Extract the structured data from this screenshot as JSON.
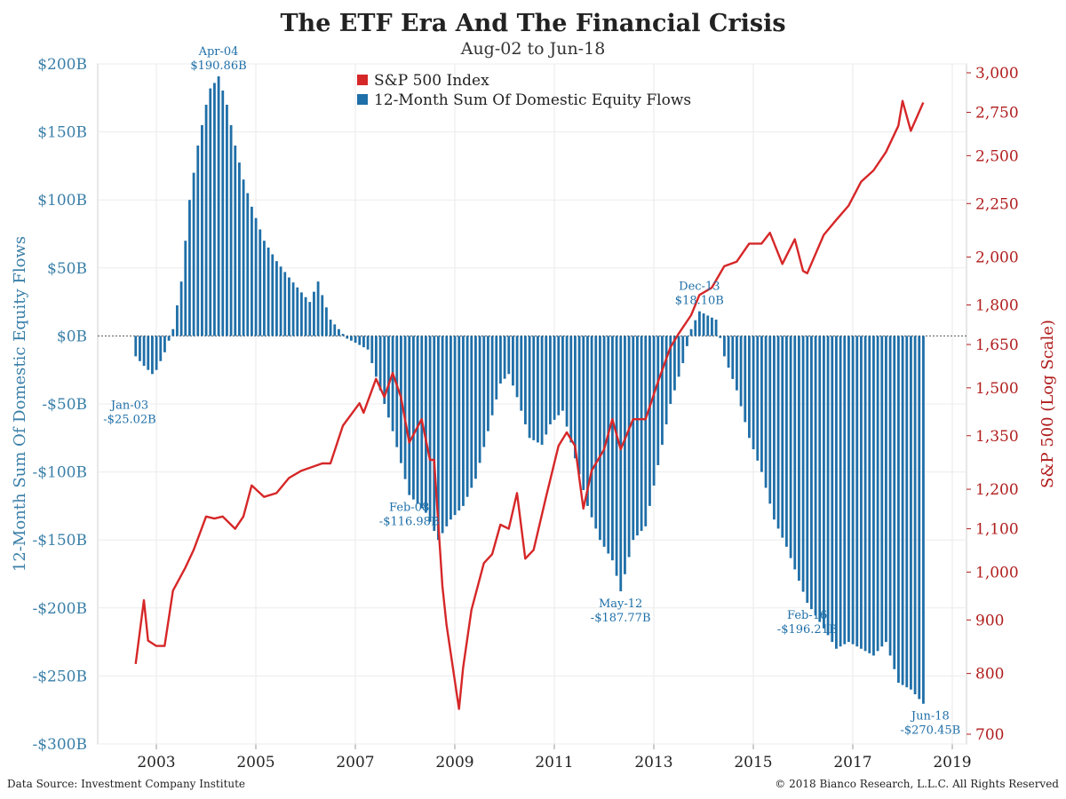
{
  "title": "The ETF Era And The Financial Crisis",
  "subtitle": "Aug-02 to Jun-18",
  "footer": {
    "source": "Data Source: Investment Company Institute",
    "copyright": "© 2018  Bianco Research, L.L.C. All Rights Reserved"
  },
  "colors": {
    "bars": "#1f6fa8",
    "line": "#d62728",
    "left_axis": "#3a7fa8",
    "right_axis": "#b01c1c"
  },
  "chart_data": {
    "type": "bar+line",
    "title": "The ETF Era And The Financial Crisis",
    "subtitle": "Aug-02 to Jun-18",
    "x_range": [
      "Aug-02",
      "Jun-18"
    ],
    "x_ticks": [
      "2003",
      "2005",
      "2007",
      "2009",
      "2011",
      "2013",
      "2015",
      "2017",
      "2019"
    ],
    "left_axis": {
      "label": "12-Month Sum Of Domestic Equity Flows",
      "ylim": [
        -300,
        200
      ],
      "ticks": [
        200,
        150,
        100,
        50,
        0,
        -50,
        -100,
        -150,
        -200,
        -250,
        -300
      ],
      "tick_labels": [
        "$200B",
        "$150B",
        "$100B",
        "$50B",
        "$0B",
        "-$50B",
        "-$100B",
        "-$150B",
        "-$200B",
        "-$250B",
        "-$300B"
      ]
    },
    "right_axis": {
      "label": "S&P 500 (Log Scale)",
      "scale": "log",
      "ylim": [
        680,
        3100
      ],
      "ticks": [
        3000,
        2750,
        2500,
        2250,
        2000,
        1800,
        1650,
        1500,
        1350,
        1200,
        1100,
        1000,
        900,
        800,
        700
      ],
      "tick_labels": [
        "3,000",
        "2,750",
        "2,500",
        "2,250",
        "2,000",
        "1,800",
        "1,650",
        "1,500",
        "1,350",
        "1,200",
        "1,100",
        "1,000",
        "900",
        "800",
        "700"
      ]
    },
    "legend": {
      "placement": "top-center",
      "entries": [
        "S&P 500 Index",
        "12-Month Sum Of Domestic Equity Flows"
      ]
    },
    "grid": true,
    "series": [
      {
        "name": "12-Month Sum Of Domestic Equity Flows",
        "type": "bar",
        "units": "$B",
        "points": [
          [
            "2002-08",
            -15
          ],
          [
            "2002-10",
            -22
          ],
          [
            "2002-12",
            -28
          ],
          [
            "2003-01",
            -25.02
          ],
          [
            "2003-03",
            -12
          ],
          [
            "2003-05",
            5
          ],
          [
            "2003-07",
            40
          ],
          [
            "2003-09",
            100
          ],
          [
            "2003-11",
            140
          ],
          [
            "2004-01",
            170
          ],
          [
            "2004-02",
            182
          ],
          [
            "2004-03",
            186
          ],
          [
            "2004-04",
            190.86
          ],
          [
            "2004-06",
            170
          ],
          [
            "2004-08",
            140
          ],
          [
            "2004-10",
            115
          ],
          [
            "2004-12",
            95
          ],
          [
            "2005-03",
            70
          ],
          [
            "2005-06",
            55
          ],
          [
            "2005-09",
            43
          ],
          [
            "2005-12",
            32
          ],
          [
            "2006-02",
            25
          ],
          [
            "2006-04",
            40
          ],
          [
            "2006-05",
            30
          ],
          [
            "2006-07",
            12
          ],
          [
            "2006-09",
            5
          ],
          [
            "2006-11",
            -2
          ],
          [
            "2007-01",
            -5
          ],
          [
            "2007-04",
            -10
          ],
          [
            "2007-07",
            -40
          ],
          [
            "2007-10",
            -70
          ],
          [
            "2008-02",
            -116.98
          ],
          [
            "2008-06",
            -130
          ],
          [
            "2008-09",
            -150
          ],
          [
            "2008-12",
            -135
          ],
          [
            "2009-03",
            -125
          ],
          [
            "2009-06",
            -105
          ],
          [
            "2009-09",
            -70
          ],
          [
            "2009-12",
            -35
          ],
          [
            "2010-02",
            -28
          ],
          [
            "2010-04",
            -45
          ],
          [
            "2010-07",
            -75
          ],
          [
            "2010-10",
            -80
          ],
          [
            "2010-12",
            -65
          ],
          [
            "2011-03",
            -55
          ],
          [
            "2011-06",
            -90
          ],
          [
            "2011-09",
            -125
          ],
          [
            "2011-12",
            -150
          ],
          [
            "2012-03",
            -165
          ],
          [
            "2012-05",
            -187.77
          ],
          [
            "2012-08",
            -150
          ],
          [
            "2012-11",
            -140
          ],
          [
            "2013-02",
            -95
          ],
          [
            "2013-05",
            -50
          ],
          [
            "2013-08",
            -20
          ],
          [
            "2013-10",
            5
          ],
          [
            "2013-12",
            18.1
          ],
          [
            "2014-02",
            15
          ],
          [
            "2014-04",
            12
          ],
          [
            "2014-06",
            -15
          ],
          [
            "2014-09",
            -40
          ],
          [
            "2014-12",
            -75
          ],
          [
            "2015-03",
            -100
          ],
          [
            "2015-06",
            -135
          ],
          [
            "2015-09",
            -155
          ],
          [
            "2015-12",
            -180
          ],
          [
            "2016-02",
            -196.21
          ],
          [
            "2016-06",
            -215
          ],
          [
            "2016-09",
            -230
          ],
          [
            "2016-12",
            -225
          ],
          [
            "2017-03",
            -230
          ],
          [
            "2017-06",
            -235
          ],
          [
            "2017-09",
            -225
          ],
          [
            "2017-12",
            -255
          ],
          [
            "2018-03",
            -260
          ],
          [
            "2018-06",
            -270.45
          ]
        ]
      },
      {
        "name": "S&P 500 Index",
        "type": "line",
        "axis": "right",
        "points": [
          [
            "2002-08",
            817
          ],
          [
            "2002-10",
            940
          ],
          [
            "2002-11",
            860
          ],
          [
            "2003-01",
            850
          ],
          [
            "2003-03",
            850
          ],
          [
            "2003-05",
            960
          ],
          [
            "2003-08",
            1010
          ],
          [
            "2003-10",
            1050
          ],
          [
            "2004-01",
            1130
          ],
          [
            "2004-03",
            1125
          ],
          [
            "2004-05",
            1130
          ],
          [
            "2004-08",
            1100
          ],
          [
            "2004-10",
            1130
          ],
          [
            "2004-12",
            1210
          ],
          [
            "2005-03",
            1180
          ],
          [
            "2005-06",
            1190
          ],
          [
            "2005-09",
            1230
          ],
          [
            "2005-12",
            1250
          ],
          [
            "2006-05",
            1270
          ],
          [
            "2006-07",
            1270
          ],
          [
            "2006-10",
            1380
          ],
          [
            "2007-02",
            1450
          ],
          [
            "2007-03",
            1420
          ],
          [
            "2007-06",
            1530
          ],
          [
            "2007-08",
            1470
          ],
          [
            "2007-10",
            1550
          ],
          [
            "2007-12",
            1470
          ],
          [
            "2008-02",
            1330
          ],
          [
            "2008-05",
            1400
          ],
          [
            "2008-07",
            1280
          ],
          [
            "2008-08",
            1280
          ],
          [
            "2008-10",
            970
          ],
          [
            "2008-11",
            890
          ],
          [
            "2009-02",
            740
          ],
          [
            "2009-03",
            810
          ],
          [
            "2009-05",
            920
          ],
          [
            "2009-08",
            1020
          ],
          [
            "2009-10",
            1040
          ],
          [
            "2009-12",
            1110
          ],
          [
            "2010-02",
            1100
          ],
          [
            "2010-04",
            1190
          ],
          [
            "2010-06",
            1030
          ],
          [
            "2010-08",
            1050
          ],
          [
            "2010-11",
            1180
          ],
          [
            "2011-02",
            1320
          ],
          [
            "2011-04",
            1360
          ],
          [
            "2011-06",
            1320
          ],
          [
            "2011-08",
            1150
          ],
          [
            "2011-10",
            1250
          ],
          [
            "2012-01",
            1310
          ],
          [
            "2012-03",
            1400
          ],
          [
            "2012-05",
            1310
          ],
          [
            "2012-08",
            1400
          ],
          [
            "2012-11",
            1400
          ],
          [
            "2013-02",
            1520
          ],
          [
            "2013-05",
            1640
          ],
          [
            "2013-07",
            1690
          ],
          [
            "2013-10",
            1760
          ],
          [
            "2013-12",
            1840
          ],
          [
            "2014-03",
            1870
          ],
          [
            "2014-06",
            1960
          ],
          [
            "2014-09",
            1980
          ],
          [
            "2014-12",
            2060
          ],
          [
            "2015-03",
            2060
          ],
          [
            "2015-05",
            2110
          ],
          [
            "2015-08",
            1970
          ],
          [
            "2015-11",
            2080
          ],
          [
            "2016-01",
            1940
          ],
          [
            "2016-02",
            1930
          ],
          [
            "2016-06",
            2100
          ],
          [
            "2016-09",
            2170
          ],
          [
            "2016-12",
            2240
          ],
          [
            "2017-03",
            2360
          ],
          [
            "2017-06",
            2420
          ],
          [
            "2017-09",
            2520
          ],
          [
            "2017-12",
            2670
          ],
          [
            "2018-01",
            2820
          ],
          [
            "2018-03",
            2640
          ],
          [
            "2018-06",
            2810
          ]
        ]
      }
    ],
    "annotations": [
      {
        "x": "2003-01",
        "label": "Jan-03",
        "value_label": "-$25.02B"
      },
      {
        "x": "2004-04",
        "label": "Apr-04",
        "value_label": "$190.86B"
      },
      {
        "x": "2008-02",
        "label": "Feb-08",
        "value_label": "-$116.98B"
      },
      {
        "x": "2012-05",
        "label": "May-12",
        "value_label": "-$187.77B"
      },
      {
        "x": "2013-12",
        "label": "Dec-13",
        "value_label": "$18.10B"
      },
      {
        "x": "2016-02",
        "label": "Feb-16",
        "value_label": "-$196.21B"
      },
      {
        "x": "2018-06",
        "label": "Jun-18",
        "value_label": "-$270.45B"
      }
    ]
  }
}
